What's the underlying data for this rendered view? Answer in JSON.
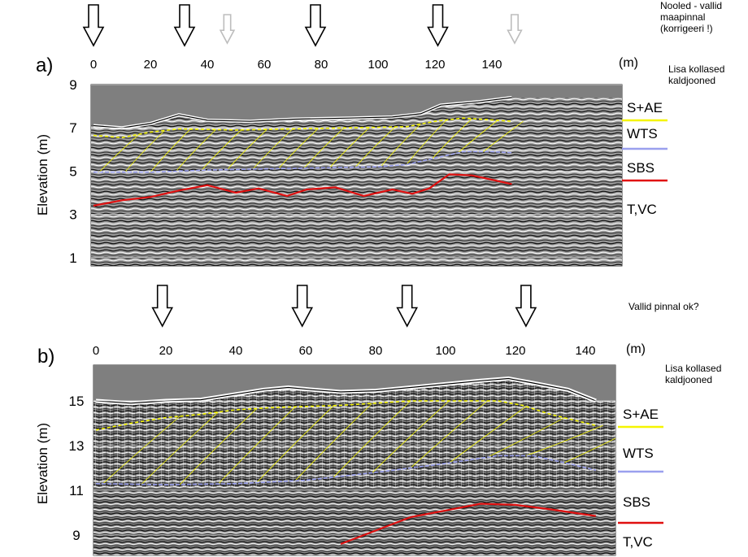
{
  "notes": {
    "top_lines": [
      "Nooled - vallid",
      "maapinnal",
      "(korrigeeri !)"
    ],
    "panel_a": [
      "Lisa kollased",
      "kaldjooned"
    ],
    "middle": "Vallid pinnal ok?",
    "panel_b": [
      "Lisa kollased",
      "kaldjooned"
    ]
  },
  "colors": {
    "yellow_line": "#f5f500",
    "blue_line": "#9aa0ee",
    "red_line": "#e01010",
    "sky": "#7f7f7f",
    "grid": "#e8e8e8",
    "arrow_gray": "#bdbdbd"
  },
  "panels": [
    {
      "id": "a",
      "letter": "a)",
      "ylabel": "Elevation (m)",
      "x_unit": "(m)",
      "x_ticks": [
        0,
        20,
        40,
        60,
        80,
        100,
        120,
        140
      ],
      "y_ticks": [
        9,
        7,
        5,
        3,
        1
      ],
      "arrows": [
        {
          "distance_m": 0,
          "style": "black"
        },
        {
          "distance_m": 32,
          "style": "black"
        },
        {
          "distance_m": 47,
          "style": "gray"
        },
        {
          "distance_m": 78,
          "style": "black"
        },
        {
          "distance_m": 121,
          "style": "black"
        },
        {
          "distance_m": 148,
          "style": "gray"
        }
      ],
      "units": [
        {
          "label": "S+AE",
          "color": "#f5f500"
        },
        {
          "label": "WTS",
          "color": "#9aa0ee"
        },
        {
          "label": "SBS",
          "color": "#e01010"
        },
        {
          "label": "T,VC",
          "color": ""
        }
      ],
      "profiles": {
        "surface": [
          [
            0,
            7.1
          ],
          [
            10,
            7.0
          ],
          [
            20,
            7.2
          ],
          [
            30,
            7.6
          ],
          [
            40,
            7.35
          ],
          [
            55,
            7.3
          ],
          [
            70,
            7.4
          ],
          [
            90,
            7.45
          ],
          [
            105,
            7.5
          ],
          [
            115,
            7.65
          ],
          [
            122,
            8.05
          ],
          [
            135,
            8.2
          ],
          [
            147,
            8.4
          ]
        ],
        "yellow": [
          [
            0,
            6.65
          ],
          [
            10,
            6.55
          ],
          [
            20,
            6.8
          ],
          [
            30,
            6.95
          ],
          [
            50,
            6.9
          ],
          [
            70,
            6.95
          ],
          [
            90,
            7.0
          ],
          [
            110,
            7.05
          ],
          [
            120,
            7.3
          ],
          [
            130,
            7.45
          ],
          [
            147,
            7.3
          ]
        ],
        "blue": [
          [
            0,
            4.95
          ],
          [
            20,
            4.95
          ],
          [
            40,
            5.05
          ],
          [
            60,
            5.1
          ],
          [
            80,
            5.15
          ],
          [
            100,
            5.2
          ],
          [
            110,
            5.3
          ],
          [
            120,
            5.6
          ],
          [
            130,
            5.9
          ],
          [
            140,
            5.9
          ],
          [
            147,
            5.85
          ]
        ],
        "red": [
          [
            0,
            3.4
          ],
          [
            10,
            3.65
          ],
          [
            20,
            3.8
          ],
          [
            30,
            4.1
          ],
          [
            40,
            4.35
          ],
          [
            50,
            4.0
          ],
          [
            58,
            4.2
          ],
          [
            68,
            3.85
          ],
          [
            75,
            4.15
          ],
          [
            85,
            4.25
          ],
          [
            95,
            3.85
          ],
          [
            105,
            4.15
          ],
          [
            112,
            3.95
          ],
          [
            118,
            4.2
          ],
          [
            125,
            4.85
          ],
          [
            133,
            4.8
          ],
          [
            140,
            4.6
          ],
          [
            147,
            4.4
          ]
        ]
      }
    },
    {
      "id": "b",
      "letter": "b)",
      "ylabel": "Elevation (m)",
      "x_unit": "(m)",
      "x_ticks": [
        0,
        20,
        40,
        60,
        80,
        100,
        120,
        140
      ],
      "y_ticks": [
        15,
        13,
        11,
        9
      ],
      "arrows": [
        {
          "distance_m": 19,
          "style": "black"
        },
        {
          "distance_m": 59,
          "style": "black"
        },
        {
          "distance_m": 89,
          "style": "black"
        },
        {
          "distance_m": 123,
          "style": "black"
        }
      ],
      "units": [
        {
          "label": "S+AE",
          "color": "#f5f500"
        },
        {
          "label": "WTS",
          "color": "#9aa0ee"
        },
        {
          "label": "SBS",
          "color": "#e01010"
        },
        {
          "label": "T,VC",
          "color": ""
        }
      ],
      "profiles": {
        "surface": [
          [
            0,
            15.0
          ],
          [
            10,
            14.9
          ],
          [
            20,
            15.0
          ],
          [
            30,
            15.05
          ],
          [
            40,
            15.3
          ],
          [
            48,
            15.5
          ],
          [
            55,
            15.6
          ],
          [
            62,
            15.5
          ],
          [
            70,
            15.4
          ],
          [
            80,
            15.45
          ],
          [
            90,
            15.6
          ],
          [
            100,
            15.75
          ],
          [
            110,
            15.9
          ],
          [
            118,
            16.0
          ],
          [
            125,
            15.8
          ],
          [
            135,
            15.5
          ],
          [
            143,
            15.0
          ]
        ],
        "yellow": [
          [
            0,
            13.7
          ],
          [
            10,
            14.0
          ],
          [
            20,
            14.25
          ],
          [
            30,
            14.4
          ],
          [
            40,
            14.6
          ],
          [
            50,
            14.7
          ],
          [
            60,
            14.75
          ],
          [
            70,
            14.8
          ],
          [
            80,
            14.9
          ],
          [
            90,
            15.0
          ],
          [
            105,
            15.0
          ],
          [
            115,
            15.0
          ],
          [
            122,
            14.8
          ],
          [
            130,
            14.4
          ],
          [
            143,
            13.9
          ]
        ],
        "blue": [
          [
            0,
            11.3
          ],
          [
            20,
            11.25
          ],
          [
            40,
            11.3
          ],
          [
            60,
            11.45
          ],
          [
            80,
            11.8
          ],
          [
            100,
            12.2
          ],
          [
            115,
            12.55
          ],
          [
            125,
            12.55
          ],
          [
            135,
            12.2
          ],
          [
            143,
            11.9
          ]
        ],
        "red": [
          [
            70,
            8.6
          ],
          [
            80,
            9.2
          ],
          [
            90,
            9.8
          ],
          [
            100,
            10.1
          ],
          [
            110,
            10.4
          ],
          [
            120,
            10.35
          ],
          [
            130,
            10.15
          ],
          [
            143,
            9.85
          ]
        ]
      },
      "reflectors_count": 0
    }
  ]
}
